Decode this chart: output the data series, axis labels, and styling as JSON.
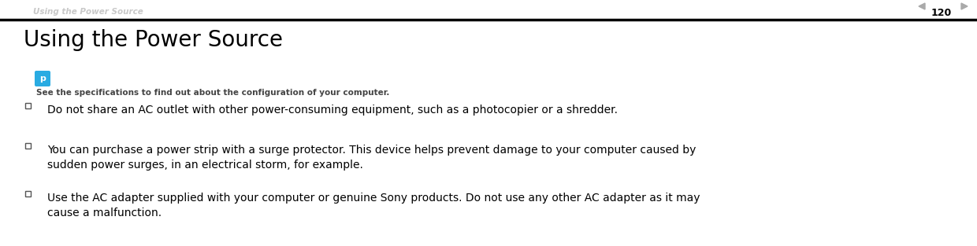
{
  "header_text": "Using the Power Source",
  "header_color": "#c8c8c8",
  "page_number": "120",
  "page_num_color": "#000000",
  "title": "Using the Power Source",
  "title_fontsize": 20,
  "title_color": "#000000",
  "note_text": "See the specifications to find out about the configuration of your computer.",
  "note_fontsize": 7.5,
  "note_color": "#444444",
  "icon_color": "#29abe2",
  "body_fontsize": 10,
  "body_color": "#000000",
  "bullets": [
    "Do not share an AC outlet with other power-consuming equipment, such as a photocopier or a shredder.",
    "You can purchase a power strip with a surge protector. This device helps prevent damage to your computer caused by\nsudden power surges, in an electrical storm, for example.",
    "Use the AC adapter supplied with your computer or genuine Sony products. Do not use any other AC adapter as it may\ncause a malfunction."
  ],
  "bg_color": "#ffffff",
  "header_line_color": "#000000",
  "arrow_color": "#aaaaaa"
}
